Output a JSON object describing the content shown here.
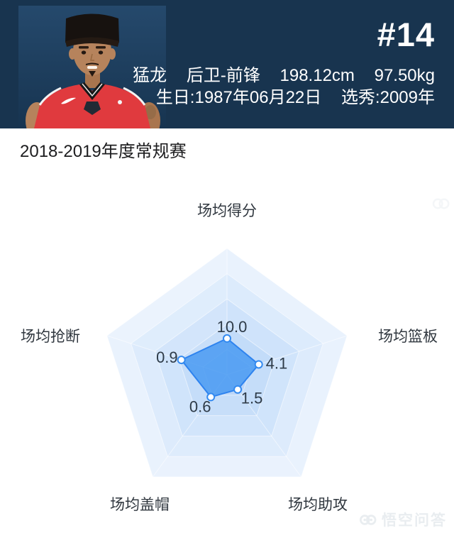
{
  "header": {
    "jersey_number": "#14",
    "team": "猛龙",
    "position": "后卫-前锋",
    "height": "198.12cm",
    "weight": "97.50kg",
    "birthday": "生日:1987年06月22日",
    "draft": "选秀:2009年",
    "bg_color": "#18344f"
  },
  "section": {
    "title": "2018-2019年度常规赛"
  },
  "chart_data": {
    "type": "radar",
    "title": "2018-2019年度常规赛",
    "levels": 5,
    "legend_position": "none",
    "axes_clockwise_from_top": [
      {
        "label": "场均得分",
        "value": 10.0,
        "display": "10.0",
        "radius_fraction": 0.287
      },
      {
        "label": "场均篮板",
        "value": 4.1,
        "display": "4.1",
        "radius_fraction": 0.264
      },
      {
        "label": "场均助攻",
        "value": 1.5,
        "display": "1.5",
        "radius_fraction": 0.144
      },
      {
        "label": "场均盖帽",
        "value": 0.6,
        "display": "0.6",
        "radius_fraction": 0.218
      },
      {
        "label": "场均抢断",
        "value": 0.9,
        "display": "0.9",
        "radius_fraction": 0.38
      }
    ],
    "ring_colors_outer_to_inner": [
      "#e9f2fd",
      "#dcebfc",
      "#cfe3fb",
      "#c3dcf9",
      "#b8d4f8"
    ],
    "series_fill": "#4c9cf1",
    "series_stroke": "#2e83ef",
    "marker_fill": "#ffffff",
    "marker_stroke": "#338af0",
    "value_label_color": "#2d3a47",
    "axis_label_color": "#30373f"
  },
  "watermark": {
    "text": "悟空问答",
    "icon": "wukong-logo-icon",
    "color": "#e9edf0"
  }
}
